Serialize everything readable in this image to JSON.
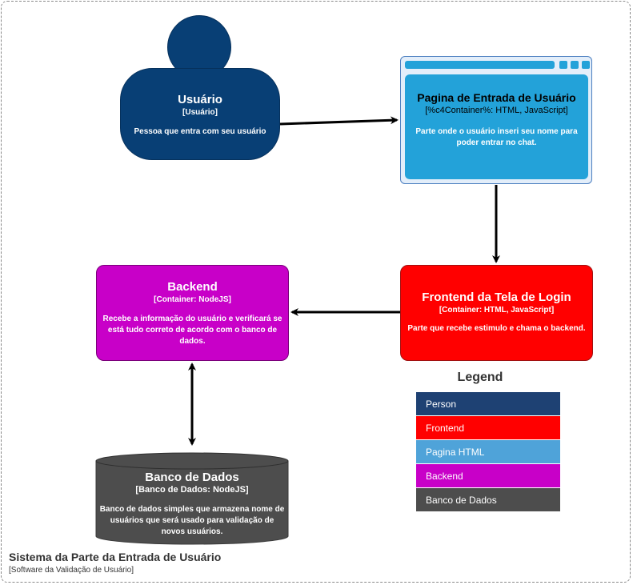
{
  "boundary": {
    "title": "Sistema da Parte da Entrada de Usuário",
    "subtitle": "[Software da Validação de Usuário]"
  },
  "person": {
    "title": "Usuário",
    "stereotype": "[Usuário]",
    "description": "Pessoa que entra com seu usuário",
    "color": "#083F75"
  },
  "web_page": {
    "title": "Pagina de Entrada de Usuário",
    "stereotype": "[%c4Container%: HTML, JavaScript]",
    "description": "Parte onde o usuário inseri seu nome para poder entrar no chat.",
    "color": "#23A2D9"
  },
  "frontend": {
    "title": "Frontend da Tela de Login",
    "stereotype": "[Container: HTML, JavaScript]",
    "description": "Parte que recebe estimulo e chama o backend.",
    "color": "#FF0000"
  },
  "backend": {
    "title": "Backend",
    "stereotype": "[Container: NodeJS]",
    "description": "Recebe a informação do usuário e verificará se está tudo correto de acordo com o banco de dados.",
    "color": "#C800C8"
  },
  "database": {
    "title": "Banco de Dados",
    "stereotype": "[Banco de Dados: NodeJS]",
    "description": "Banco de dados simples que armazena nome de usuários que será usado para validação de novos usuários.",
    "color": "#4D4D4D"
  },
  "legend": {
    "title": "Legend",
    "items": [
      {
        "label": "Person",
        "color": "#1E4173"
      },
      {
        "label": "Frontend",
        "color": "#FF0000"
      },
      {
        "label": "Pagina HTML",
        "color": "#4FA3D9"
      },
      {
        "label": "Backend",
        "color": "#C800C8"
      },
      {
        "label": "Banco de Dados",
        "color": "#4D4D4D"
      }
    ]
  }
}
